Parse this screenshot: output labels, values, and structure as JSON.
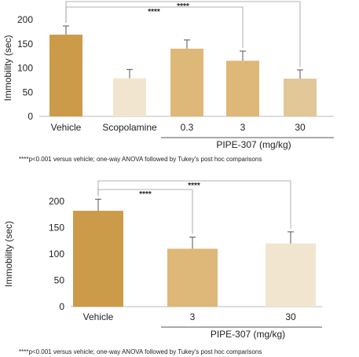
{
  "chart_data": [
    {
      "type": "bar",
      "categories": [
        "Vehicle",
        "Scopolamine",
        "0.3",
        "3",
        "30"
      ],
      "values": [
        169,
        79,
        140,
        115,
        78
      ],
      "errors": [
        18,
        18,
        18,
        20,
        18
      ],
      "bar_colors": [
        "#cc9b4a",
        "#f2e5cf",
        "#deb878",
        "#deb878",
        "#e2c898"
      ],
      "ylabel": "Immobility (sec)",
      "ylim": [
        0,
        200
      ],
      "yticks": [
        0,
        50,
        100,
        150,
        200
      ],
      "grid": false,
      "group_label": "PIPE-307 (mg/kg)",
      "significance": [
        {
          "from": "Vehicle",
          "to": "3",
          "label": "****"
        },
        {
          "from": "Vehicle",
          "to": "30",
          "label": "****"
        }
      ],
      "footnote": "****p<0.001 versus vehicle; one-way ANOVA followed by Tukey's post hoc comparisons"
    },
    {
      "type": "bar",
      "categories": [
        "Vehicle",
        "3",
        "30"
      ],
      "values": [
        182,
        110,
        120
      ],
      "errors": [
        22,
        22,
        22
      ],
      "bar_colors": [
        "#cc9b4a",
        "#deb878",
        "#f2e5cf"
      ],
      "ylabel": "Immobility (sec)",
      "ylim": [
        0,
        200
      ],
      "yticks": [
        0,
        50,
        100,
        150,
        200
      ],
      "grid": false,
      "group_label": "PIPE-307 (mg/kg)",
      "significance": [
        {
          "from": "Vehicle",
          "to": "3",
          "label": "****"
        },
        {
          "from": "Vehicle",
          "to": "30",
          "label": "****"
        }
      ],
      "footnote": "****p<0.001 versus vehicle; one-way ANOVA followed by Tukey's post hoc comparisons"
    }
  ]
}
